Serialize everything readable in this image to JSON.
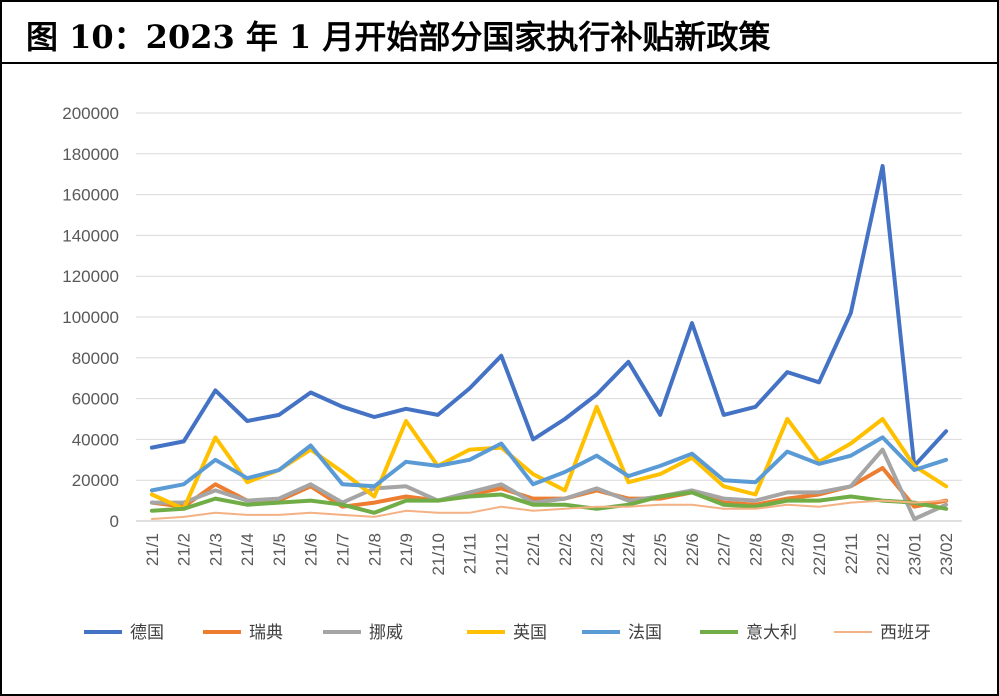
{
  "figure_title": "图 10：2023 年 1 月开始部分国家执行补贴新政策",
  "chart_data": {
    "type": "line",
    "title": "",
    "xlabel": "",
    "ylabel": "",
    "ylim": [
      0,
      200000
    ],
    "yticks": [
      "0",
      "20000",
      "40000",
      "60000",
      "80000",
      "100000",
      "120000",
      "140000",
      "160000",
      "180000",
      "200000"
    ],
    "grid": true,
    "legend_position": "bottom",
    "categories": [
      "21/1",
      "21/2",
      "21/3",
      "21/4",
      "21/5",
      "21/6",
      "21/7",
      "21/8",
      "21/9",
      "21/10",
      "21/11",
      "21/12",
      "22/1",
      "22/2",
      "22/3",
      "22/4",
      "22/5",
      "22/6",
      "22/7",
      "22/8",
      "22/9",
      "22/10",
      "22/11",
      "22/12",
      "23/01",
      "23/02"
    ],
    "series": [
      {
        "name": "德国",
        "color": "#4472C4",
        "values": [
          36000,
          39000,
          64000,
          49000,
          52000,
          63000,
          56000,
          51000,
          55000,
          52000,
          65000,
          81000,
          40000,
          50000,
          62000,
          78000,
          52000,
          97000,
          52000,
          56000,
          73000,
          68000,
          102000,
          174000,
          27000,
          44000
        ]
      },
      {
        "name": "瑞典",
        "color": "#ED7D31",
        "values": [
          9000,
          7000,
          18000,
          10000,
          10000,
          17000,
          7000,
          9000,
          12000,
          10000,
          13000,
          16000,
          11000,
          11000,
          15000,
          11000,
          11000,
          14000,
          9000,
          8000,
          11000,
          13000,
          17000,
          26000,
          7000,
          10000
        ]
      },
      {
        "name": "挪威",
        "color": "#A5A5A5",
        "values": [
          9000,
          9000,
          15000,
          10000,
          11000,
          18000,
          9000,
          16000,
          17000,
          10000,
          14000,
          18000,
          9000,
          11000,
          16000,
          10000,
          12000,
          15000,
          11000,
          10000,
          14000,
          14000,
          17000,
          35000,
          1000,
          8000
        ]
      },
      {
        "name": "英国",
        "color": "#FFC000",
        "values": [
          13000,
          6000,
          41000,
          19000,
          25000,
          35000,
          24000,
          12000,
          49000,
          27000,
          35000,
          36000,
          23000,
          15000,
          56000,
          19000,
          23000,
          31000,
          17000,
          13000,
          50000,
          29000,
          38000,
          50000,
          27000,
          17000
        ]
      },
      {
        "name": "法国",
        "color": "#5B9BD5",
        "values": [
          15000,
          18000,
          30000,
          21000,
          25000,
          37000,
          18000,
          17000,
          29000,
          27000,
          30000,
          38000,
          18000,
          24000,
          32000,
          22000,
          27000,
          33000,
          20000,
          19000,
          34000,
          28000,
          32000,
          41000,
          25000,
          30000
        ]
      },
      {
        "name": "意大利",
        "color": "#70AD47",
        "values": [
          5000,
          6000,
          11000,
          8000,
          9000,
          10000,
          8000,
          4000,
          10000,
          10000,
          12000,
          13000,
          8000,
          8000,
          6000,
          8000,
          12000,
          14000,
          8000,
          7000,
          10000,
          10000,
          12000,
          10000,
          9000,
          6000
        ]
      },
      {
        "name": "西班牙",
        "color": "#F4B183",
        "values": [
          1000,
          2000,
          4000,
          3000,
          3000,
          4000,
          3000,
          2000,
          5000,
          4000,
          4000,
          7000,
          5000,
          6000,
          7000,
          7000,
          8000,
          8000,
          6000,
          6000,
          8000,
          7000,
          9000,
          10000,
          9000,
          10000
        ]
      }
    ]
  }
}
